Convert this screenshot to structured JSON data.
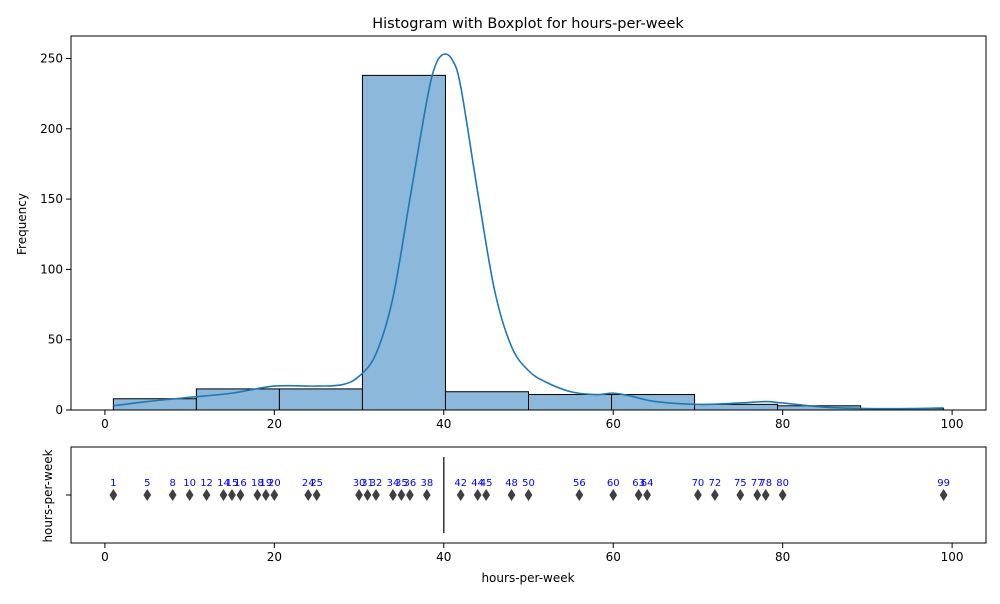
{
  "chart_data": [
    {
      "type": "bar",
      "title": "Histogram with Boxplot for hours-per-week",
      "xlabel": "",
      "ylabel": "Frequency",
      "xlim": [
        -4,
        104
      ],
      "ylim": [
        0,
        266
      ],
      "x_ticks": [
        0,
        20,
        40,
        60,
        80,
        100
      ],
      "y_ticks": [
        0,
        50,
        100,
        150,
        200,
        250
      ],
      "bins": [
        {
          "start": 1.0,
          "end": 10.8,
          "count": 8
        },
        {
          "start": 10.8,
          "end": 20.6,
          "count": 15
        },
        {
          "start": 20.6,
          "end": 30.4,
          "count": 15
        },
        {
          "start": 30.4,
          "end": 40.2,
          "count": 238
        },
        {
          "start": 40.2,
          "end": 50.0,
          "count": 13
        },
        {
          "start": 50.0,
          "end": 59.8,
          "count": 11
        },
        {
          "start": 59.8,
          "end": 69.6,
          "count": 11
        },
        {
          "start": 69.6,
          "end": 79.4,
          "count": 4
        },
        {
          "start": 79.4,
          "end": 89.2,
          "count": 3
        },
        {
          "start": 89.2,
          "end": 99.0,
          "count": 1
        }
      ],
      "kde": {
        "x": [
          1,
          5,
          10,
          15,
          20,
          25,
          28,
          30,
          32,
          34,
          36,
          38,
          39,
          40,
          41,
          42,
          44,
          46,
          48,
          50,
          52,
          55,
          58,
          60,
          62,
          65,
          70,
          75,
          78,
          80,
          85,
          90,
          95,
          99
        ],
        "y": [
          3,
          6,
          9,
          12,
          17,
          17,
          18,
          24,
          40,
          80,
          150,
          220,
          245,
          253,
          249,
          230,
          155,
          85,
          45,
          28,
          20,
          13,
          11,
          12,
          10,
          6,
          4,
          5,
          6,
          5,
          2,
          1,
          1,
          1.5
        ]
      },
      "colors": {
        "bar": "#8cb9db",
        "kde": "#1f77b4",
        "edge": "#000000"
      }
    },
    {
      "type": "scatter",
      "subtype": "boxplot",
      "xlabel": "hours-per-week",
      "ylabel": "hours-per-week",
      "xlim": [
        -4,
        104
      ],
      "x_ticks": [
        0,
        20,
        40,
        60,
        80,
        100
      ],
      "median": 40,
      "outliers": [
        1,
        5,
        8,
        10,
        12,
        14,
        15,
        16,
        18,
        19,
        20,
        24,
        25,
        30,
        31,
        32,
        34,
        35,
        36,
        38,
        42,
        44,
        45,
        48,
        50,
        56,
        60,
        63,
        64,
        70,
        72,
        75,
        77,
        78,
        80,
        99
      ],
      "annotations": [
        {
          "x": 1,
          "text": "1"
        },
        {
          "x": 5,
          "text": "5"
        },
        {
          "x": 8,
          "text": "8"
        },
        {
          "x": 10,
          "text": "10"
        },
        {
          "x": 12,
          "text": "12"
        },
        {
          "x": 14,
          "text": "14"
        },
        {
          "x": 15,
          "text": "15"
        },
        {
          "x": 16,
          "text": "16"
        },
        {
          "x": 18,
          "text": "18"
        },
        {
          "x": 19,
          "text": "19"
        },
        {
          "x": 20,
          "text": "20"
        },
        {
          "x": 24,
          "text": "24"
        },
        {
          "x": 25,
          "text": "25"
        },
        {
          "x": 30,
          "text": "30"
        },
        {
          "x": 31,
          "text": "31"
        },
        {
          "x": 32,
          "text": "32"
        },
        {
          "x": 34,
          "text": "34"
        },
        {
          "x": 35,
          "text": "35"
        },
        {
          "x": 36,
          "text": "36"
        },
        {
          "x": 38,
          "text": "38"
        },
        {
          "x": 42,
          "text": "42"
        },
        {
          "x": 44,
          "text": "44"
        },
        {
          "x": 45,
          "text": "45"
        },
        {
          "x": 48,
          "text": "48"
        },
        {
          "x": 50,
          "text": "50"
        },
        {
          "x": 56,
          "text": "56"
        },
        {
          "x": 60,
          "text": "60"
        },
        {
          "x": 63,
          "text": "63"
        },
        {
          "x": 64,
          "text": "64"
        },
        {
          "x": 70,
          "text": "70"
        },
        {
          "x": 72,
          "text": "72"
        },
        {
          "x": 75,
          "text": "75"
        },
        {
          "x": 77,
          "text": "77"
        },
        {
          "x": 78,
          "text": "78"
        },
        {
          "x": 80,
          "text": "80"
        },
        {
          "x": 99,
          "text": "99"
        }
      ],
      "colors": {
        "marker": "#3f3f3f",
        "label": "#0000ff",
        "median": "#3f3f3f"
      }
    }
  ]
}
